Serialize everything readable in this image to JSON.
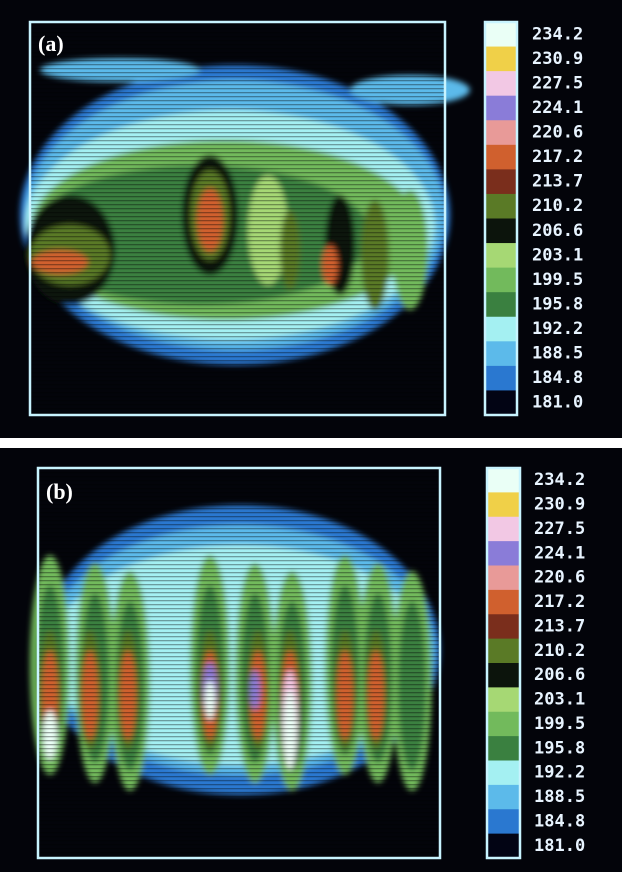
{
  "panels": [
    {
      "label": "(a)",
      "colorbar_labels": [
        "234.2",
        "230.9",
        "227.5",
        "224.1",
        "220.6",
        "217.2",
        "213.7",
        "210.2",
        "206.6",
        "203.1",
        "199.5",
        "195.8",
        "192.2",
        "188.5",
        "184.8",
        "181.0"
      ]
    },
    {
      "label": "(b)",
      "colorbar_labels": [
        "234.2",
        "230.9",
        "227.5",
        "224.1",
        "220.6",
        "217.2",
        "213.7",
        "210.2",
        "206.6",
        "203.1",
        "199.5",
        "195.8",
        "192.2",
        "188.5",
        "184.8",
        "181.0"
      ]
    }
  ],
  "colorbar_colors": [
    "#eafff6",
    "#f0d048",
    "#f2c8e4",
    "#8a7cd8",
    "#e89a98",
    "#d0602e",
    "#7a2e1c",
    "#5a7a26",
    "#0c140c",
    "#a6d874",
    "#72ba5c",
    "#3a8040",
    "#a4f0f2",
    "#5cbaea",
    "#2a78d0",
    "#020414"
  ]
}
